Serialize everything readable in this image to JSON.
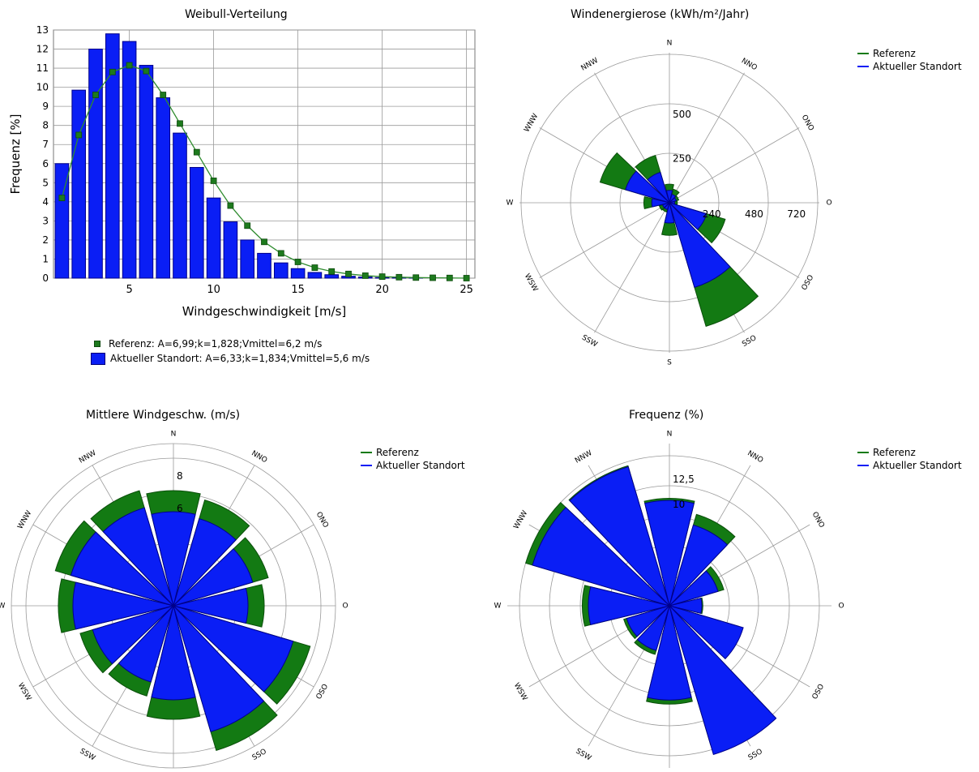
{
  "colors": {
    "reference": "#137a13",
    "reference_dark": "#0b4f0b",
    "current": "#0a1ef5",
    "current_dark": "#00008a",
    "grid": "#9a9a9a"
  },
  "weibull": {
    "title": "Weibull-Verteilung",
    "xlabel": "Windgeschwindigkeit [m/s]",
    "ylabel": "Frequenz [%]",
    "legend_reference": "Referenz: A=6,99;k=1,828;Vmittel=6,2 m/s",
    "legend_current": "Aktueller Standort: A=6,33;k=1,834;Vmittel=5,6 m/s"
  },
  "energy_rose": {
    "title": "Windenergierose (kWh/m²/Jahr)"
  },
  "speed_rose": {
    "title": "Mittlere Windgeschw. (m/s)"
  },
  "freq_rose": {
    "title": "Frequenz (%)"
  },
  "legend": {
    "reference": "Referenz",
    "current": "Aktueller Standort"
  },
  "chart_data": [
    {
      "type": "bar",
      "title": "Weibull-Verteilung",
      "xlabel": "Windgeschwindigkeit [m/s]",
      "ylabel": "Frequenz [%]",
      "xlim": [
        0.5,
        25.5
      ],
      "ylim": [
        0,
        13
      ],
      "xticks": [
        5,
        10,
        15,
        20,
        25
      ],
      "yticks": [
        0,
        1,
        2,
        3,
        4,
        5,
        6,
        7,
        8,
        9,
        10,
        11,
        12,
        13
      ],
      "x": [
        1,
        2,
        3,
        4,
        5,
        6,
        7,
        8,
        9,
        10,
        11,
        12,
        13,
        14,
        15,
        16,
        17,
        18,
        19,
        20,
        21,
        22,
        23,
        24,
        25
      ],
      "series": [
        {
          "name": "Aktueller Standort: A=6,33;k=1,834;Vmittel=5,6 m/s",
          "type": "bar",
          "values": [
            6.0,
            9.85,
            12.0,
            12.8,
            12.4,
            11.15,
            9.45,
            7.6,
            5.8,
            4.2,
            2.95,
            2.0,
            1.3,
            0.8,
            0.5,
            0.3,
            0.18,
            0.1,
            0.06,
            0.03,
            0.02,
            0.01,
            0.0,
            0.0,
            0.0
          ]
        },
        {
          "name": "Referenz: A=6,99;k=1,828;Vmittel=6,2 m/s",
          "type": "line",
          "values": [
            4.2,
            7.5,
            9.6,
            10.8,
            11.15,
            10.85,
            9.6,
            8.1,
            6.6,
            5.1,
            3.8,
            2.75,
            1.9,
            1.3,
            0.85,
            0.55,
            0.35,
            0.22,
            0.13,
            0.08,
            0.05,
            0.03,
            0.02,
            0.01,
            0.0
          ]
        }
      ],
      "grid": true,
      "legend_position": "bottom"
    },
    {
      "type": "polar-bar",
      "title": "Windenergierose (kWh/m²/Jahr)",
      "directions": [
        "N",
        "NNO",
        "ONO",
        "O",
        "OSO",
        "SSO",
        "S",
        "SSW",
        "WSW",
        "W",
        "WNW",
        "NNW"
      ],
      "radial_ticks": [
        250,
        500
      ],
      "axis_ticks_east": [
        240,
        480,
        720
      ],
      "rmax": 850,
      "series": [
        {
          "name": "Referenz",
          "values": [
            105,
            80,
            55,
            45,
            330,
            730,
            185,
            55,
            60,
            145,
            410,
            280
          ]
        },
        {
          "name": "Aktueller Standort",
          "values": [
            70,
            50,
            40,
            30,
            220,
            500,
            115,
            40,
            40,
            100,
            260,
            180
          ]
        }
      ],
      "legend_position": "top-right"
    },
    {
      "type": "polar-bar",
      "title": "Mittlere Windgeschw. (m/s)",
      "directions": [
        "N",
        "NNO",
        "ONO",
        "O",
        "OSO",
        "SSO",
        "S",
        "SSW",
        "WSW",
        "W",
        "WNW",
        "NNW"
      ],
      "radial_ticks": [
        6,
        8
      ],
      "rmax": 10,
      "series": [
        {
          "name": "Referenz",
          "values": [
            7.1,
            6.8,
            6.1,
            5.6,
            8.8,
            9.3,
            7.0,
            5.8,
            6.0,
            7.1,
            7.6,
            7.4
          ]
        },
        {
          "name": "Aktueller Standort",
          "values": [
            5.8,
            5.6,
            5.1,
            4.6,
            7.7,
            8.1,
            5.8,
            4.9,
            5.2,
            6.2,
            6.6,
            6.3
          ]
        }
      ],
      "legend_position": "top-right"
    },
    {
      "type": "polar-bar",
      "title": "Frequenz (%)",
      "directions": [
        "N",
        "NNO",
        "ONO",
        "O",
        "OSO",
        "SSO",
        "S",
        "SSW",
        "WSW",
        "W",
        "WNW",
        "NNW"
      ],
      "radial_ticks": [
        10,
        12.5
      ],
      "radial_tick_labels": [
        "10",
        "12,5"
      ],
      "rmax": 16,
      "series": [
        {
          "name": "Referenz",
          "values": [
            10.6,
            9.4,
            5.6,
            3.3,
            7.1,
            14.3,
            9.7,
            5.0,
            4.7,
            8.6,
            14.8,
            14.4
          ]
        },
        {
          "name": "Aktueller Standort",
          "values": [
            10.4,
            8.3,
            5.0,
            3.2,
            7.6,
            15.3,
            9.3,
            4.6,
            4.4,
            8.0,
            14.1,
            14.3
          ]
        }
      ],
      "legend_position": "top-right"
    }
  ]
}
